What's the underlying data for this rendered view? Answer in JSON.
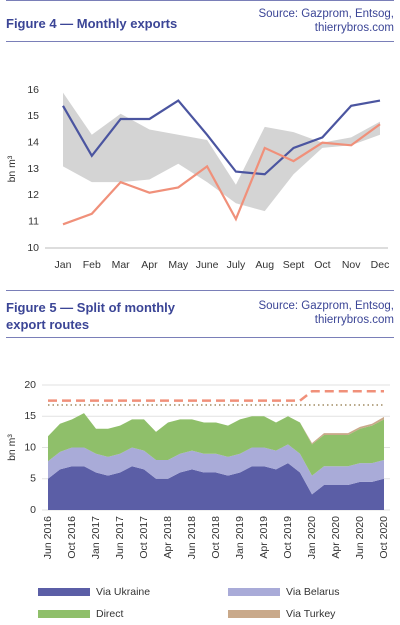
{
  "chart_data": [
    {
      "type": "line",
      "title": "Figure 4 — Monthly exports",
      "source": "Source: Gazprom, Entsog, thierrybros.com",
      "ylabel": "bn m³",
      "categories": [
        "Jan",
        "Feb",
        "Mar",
        "Apr",
        "May",
        "June",
        "July",
        "Aug",
        "Sept",
        "Oct",
        "Nov",
        "Dec"
      ],
      "series": [
        {
          "color": "#4b55a0",
          "values": [
            15.4,
            13.5,
            14.9,
            14.9,
            15.6,
            14.3,
            12.9,
            12.8,
            13.8,
            14.2,
            15.4,
            15.6
          ]
        },
        {
          "color": "#f0907a",
          "values": [
            10.9,
            11.3,
            12.5,
            12.1,
            12.3,
            13.1,
            11.1,
            13.8,
            13.3,
            14.0,
            13.9,
            14.7
          ]
        }
      ],
      "band": {
        "color": "#d4d4d4",
        "lower": [
          13.1,
          12.5,
          12.5,
          12.6,
          13.2,
          12.5,
          11.7,
          11.4,
          12.8,
          13.8,
          13.9,
          14.3
        ],
        "upper": [
          15.9,
          14.3,
          15.1,
          14.5,
          14.3,
          14.1,
          12.4,
          14.6,
          14.4,
          14.0,
          14.2,
          14.8
        ]
      },
      "ylim": [
        10,
        16
      ],
      "yticks": [
        10,
        11,
        12,
        13,
        14,
        15,
        16
      ],
      "grid": false
    },
    {
      "type": "area",
      "title": "Figure 5 — Split of monthly export routes",
      "source": "Source: Gazprom, Entsog, thierrybros.com",
      "ylabel": "bn m³",
      "categories": [
        "Jun 2016",
        null,
        "Oct 2016",
        null,
        "Jan 2017",
        null,
        "Jun 2017",
        null,
        "Oct 2017",
        null,
        "Apr 2018",
        null,
        "Jun 2018",
        null,
        "Oct 2018",
        null,
        "Jan 2019",
        null,
        "Apr 2019",
        null,
        "Oct 2019",
        null,
        "Jan 2020",
        null,
        "Apr 2020",
        null,
        "Jun 2020",
        null,
        "Oct 2020"
      ],
      "series": [
        {
          "name": "Via Ukraine",
          "color": "#5b5ea6",
          "values": [
            5,
            6.5,
            7,
            7,
            6,
            5.5,
            6,
            7,
            6.5,
            5,
            5,
            6,
            6.5,
            6,
            6,
            5.5,
            6,
            7,
            7,
            6.5,
            7.5,
            6,
            2.5,
            4,
            4,
            4,
            4.5,
            4.5,
            5
          ]
        },
        {
          "name": "Via Belarus",
          "color": "#a9abd8",
          "values": [
            2.8,
            2.8,
            3,
            3,
            3,
            3,
            3,
            3,
            3,
            3,
            3,
            3,
            3,
            3,
            3,
            3,
            3,
            3,
            3,
            3,
            3,
            3,
            3,
            3,
            3,
            3,
            3,
            3,
            3
          ]
        },
        {
          "name": "Direct",
          "color": "#8fbf6a",
          "values": [
            4,
            4.5,
            4.5,
            5.5,
            4,
            4.5,
            4.5,
            4.5,
            5,
            4.5,
            6,
            5.5,
            5,
            5,
            5,
            5,
            5.5,
            5,
            5,
            4.5,
            4.5,
            5,
            5,
            5,
            5,
            5,
            5.5,
            6,
            6.5
          ]
        },
        {
          "name": "Via Turkey",
          "color": "#c9a98a",
          "values": [
            0,
            0,
            0,
            0,
            0,
            0,
            0,
            0,
            0,
            0,
            0,
            0,
            0,
            0,
            0,
            0,
            0,
            0,
            0,
            0,
            0,
            0,
            0.2,
            0.3,
            0.3,
            0.3,
            0.3,
            0.3,
            0.4
          ]
        }
      ],
      "lines": [
        {
          "color": "#f0907a",
          "style": "dashed",
          "values": [
            17.5,
            17.5,
            17.5,
            17.5,
            17.5,
            17.5,
            17.5,
            17.5,
            17.5,
            17.5,
            17.5,
            17.5,
            17.5,
            17.5,
            17.5,
            17.5,
            17.5,
            17.5,
            17.5,
            17.5,
            17.5,
            17.5,
            19,
            19,
            19,
            19,
            19,
            19,
            19
          ]
        },
        {
          "color": "#b8a88a",
          "style": "dotted",
          "values": [
            16.8,
            16.8,
            16.8,
            16.8,
            16.8,
            16.8,
            16.8,
            16.8,
            16.8,
            16.8,
            16.8,
            16.8,
            16.8,
            16.8,
            16.8,
            16.8,
            16.8,
            16.8,
            16.8,
            16.8,
            16.8,
            16.8,
            16.8,
            16.8,
            16.8,
            16.8,
            16.8,
            16.8,
            16.8
          ]
        }
      ],
      "ylim": [
        0,
        20
      ],
      "yticks": [
        0,
        5,
        10,
        15,
        20
      ],
      "grid": true
    }
  ]
}
